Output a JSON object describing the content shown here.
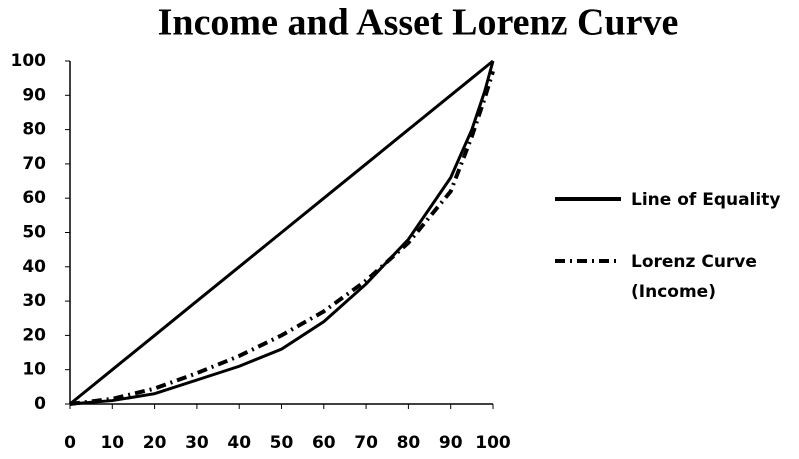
{
  "chart_data": {
    "type": "line",
    "title": "Income and Asset Lorenz Curve",
    "x": [
      0,
      10,
      20,
      30,
      40,
      50,
      60,
      70,
      80,
      90,
      95,
      98,
      100
    ],
    "series": [
      {
        "name": "Line of Equality",
        "color": "#000000",
        "style": "solid",
        "values": [
          0,
          10,
          20,
          30,
          40,
          50,
          60,
          70,
          80,
          90,
          95,
          98,
          100
        ]
      },
      {
        "name": "Lorenz Curve (Income)",
        "color": "#000000",
        "style": "dash-dot",
        "values": [
          0,
          1.5,
          4.5,
          9,
          14,
          20,
          27,
          36,
          47,
          62,
          78,
          89,
          97
        ]
      },
      {
        "color": "#000000",
        "style": "solid",
        "values": [
          0,
          1,
          3,
          7,
          11,
          16,
          24,
          35,
          48,
          66,
          80,
          91,
          100
        ]
      }
    ],
    "xlim": [
      0,
      100
    ],
    "xticks": [
      0,
      10,
      20,
      30,
      40,
      50,
      60,
      70,
      80,
      90,
      100
    ],
    "ylim": [
      0,
      100
    ],
    "yticks": [
      0,
      10,
      20,
      30,
      40,
      50,
      60,
      70,
      80,
      90,
      100
    ],
    "grid": false,
    "legend": "right"
  }
}
